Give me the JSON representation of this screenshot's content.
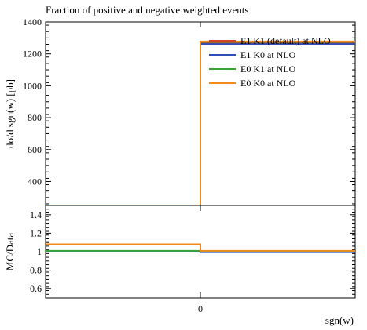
{
  "chart_data": [
    {
      "type": "line",
      "title": "Fraction of positive and negative weighted events",
      "ylabel": "dσ/d sgn(w) [pb]",
      "xlabel": "",
      "ylim": [
        250,
        1400
      ],
      "xlim": [
        -1,
        1
      ],
      "yticks": [
        400,
        600,
        800,
        1000,
        1200,
        1400
      ],
      "bins": [
        [
          -1,
          0
        ],
        [
          0,
          1
        ]
      ],
      "legend_position": "top-right",
      "series": [
        {
          "name": "E1 K1 (default) at NLO",
          "color": "#d0422a",
          "values": [
            240,
            1270
          ]
        },
        {
          "name": "E1 K0 at NLO",
          "color": "#2e4fb8",
          "values": [
            230,
            1262
          ]
        },
        {
          "name": "E0 K1 at NLO",
          "color": "#3aa535",
          "values": [
            248,
            1275
          ]
        },
        {
          "name": "E0 K0 at NLO",
          "color": "#f08a1c",
          "values": [
            250,
            1278
          ]
        }
      ]
    },
    {
      "type": "line",
      "title": "",
      "ylabel": "MC/Data",
      "xlabel": "sgn(w)",
      "ylim": [
        0.5,
        1.5
      ],
      "xlim": [
        -1,
        1
      ],
      "yticks": [
        0.6,
        0.8,
        1,
        1.2,
        1.4
      ],
      "xticks": [
        0
      ],
      "xtick_labels": [
        "0"
      ],
      "bins": [
        [
          -1,
          0
        ],
        [
          0,
          1
        ]
      ],
      "series": [
        {
          "name": "E1 K1 (default) at NLO",
          "color": "#d0422a",
          "values": [
            1.0,
            1.0
          ]
        },
        {
          "name": "E1 K0 at NLO",
          "color": "#2e4fb8",
          "values": [
            1.0,
            0.995
          ]
        },
        {
          "name": "E0 K1 at NLO",
          "color": "#3aa535",
          "values": [
            1.01,
            1.005
          ]
        },
        {
          "name": "E0 K0 at NLO",
          "color": "#f08a1c",
          "values": [
            1.08,
            1.01
          ]
        }
      ]
    }
  ]
}
